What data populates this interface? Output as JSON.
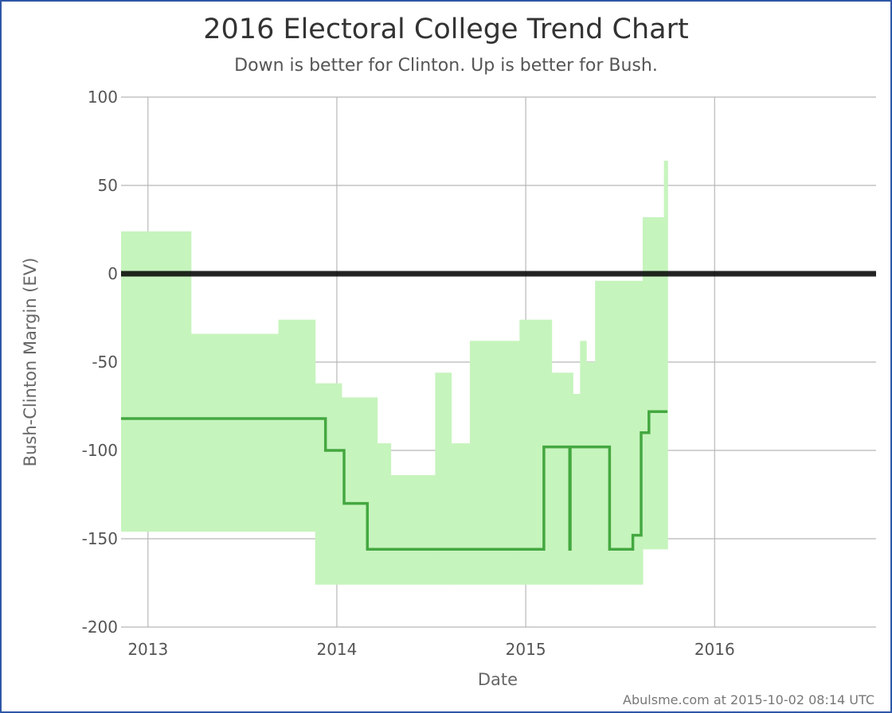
{
  "chart_data": {
    "type": "line",
    "title": "2016 Electoral College Trend Chart",
    "subtitle": "Down is better for Clinton. Up is better for Bush.",
    "xlabel": "Date",
    "ylabel": "Bush-Clinton Margin (EV)",
    "credit": "Abulsme.com at 2015-10-02 08:14 UTC",
    "xlim": [
      "2012-11-10",
      "2016-11-08"
    ],
    "ylim": [
      -200,
      100
    ],
    "x_ticks": [
      "2013-01-01",
      "2014-01-01",
      "2015-01-01",
      "2016-01-01"
    ],
    "x_tick_labels": [
      "2013",
      "2014",
      "2015",
      "2016"
    ],
    "y_ticks": [
      100,
      50,
      0,
      -50,
      -100,
      -150,
      -200
    ],
    "y_tick_labels": [
      "100",
      "50",
      "0",
      "-50",
      "-100",
      "-150",
      "-200"
    ],
    "grid": true,
    "reference_line": 0,
    "series": [
      {
        "role": "expected-margin",
        "color": "#44a840",
        "x": [
          "2012-11-10",
          "2013-12-10",
          "2013-12-10",
          "2014-01-15",
          "2014-01-15",
          "2014-03-01",
          "2014-03-01",
          "2015-02-05",
          "2015-02-05",
          "2015-03-27",
          "2015-03-27",
          "2015-03-28",
          "2015-03-28",
          "2015-06-12",
          "2015-06-12",
          "2015-07-27",
          "2015-07-27",
          "2015-08-12",
          "2015-08-12",
          "2015-08-27",
          "2015-08-27",
          "2015-10-02"
        ],
        "y": [
          -82,
          -82,
          -100,
          -100,
          -130,
          -130,
          -156,
          -156,
          -98,
          -98,
          -156,
          -156,
          -98,
          -98,
          -156,
          -156,
          -148,
          -148,
          -90,
          -90,
          -78,
          -78
        ]
      }
    ],
    "range_band": {
      "color": "#c6f4bd",
      "x": [
        "2012-11-10",
        "2013-03-25",
        "2013-09-10",
        "2013-11-20",
        "2014-01-10",
        "2014-03-20",
        "2014-04-15",
        "2014-07-10",
        "2014-08-10",
        "2014-09-15",
        "2014-12-20",
        "2015-02-12",
        "2015-02-20",
        "2015-04-02",
        "2015-04-16",
        "2015-04-28",
        "2015-05-15",
        "2015-08-07",
        "2015-08-15",
        "2015-09-25",
        "2015-10-02"
      ],
      "upper": [
        24,
        -34,
        -26,
        -62,
        -70,
        -96,
        -114,
        -56,
        -96,
        -38,
        -26,
        -26,
        -56,
        -68,
        -38,
        -50,
        -4,
        -4,
        32,
        64,
        64
      ],
      "lower": [
        -146,
        -146,
        -146,
        -176,
        -176,
        -176,
        -176,
        -176,
        -176,
        -176,
        -176,
        -176,
        -176,
        -176,
        -176,
        -176,
        -176,
        -176,
        -156,
        -156,
        -98
      ]
    }
  }
}
